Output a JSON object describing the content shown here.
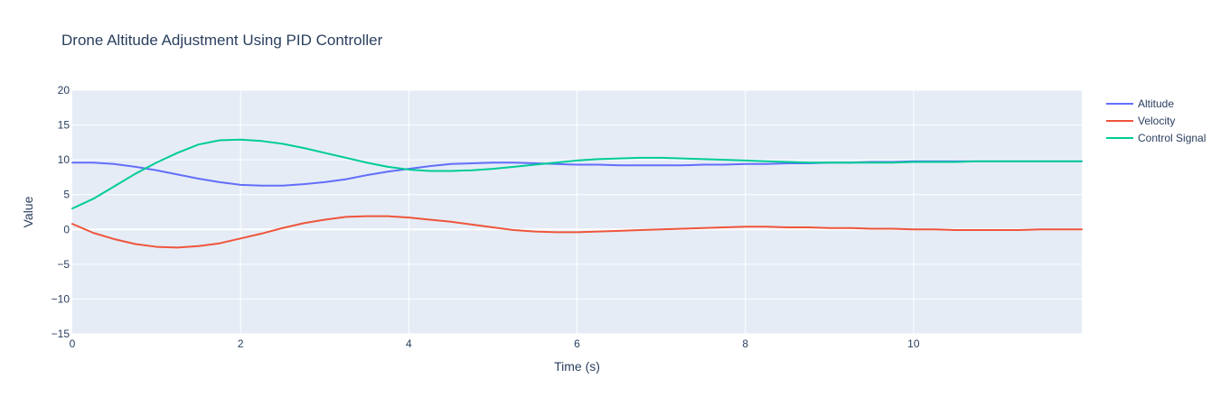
{
  "chart_data": {
    "type": "line",
    "title": "Drone Altitude Adjustment Using PID Controller",
    "xlabel": "Time (s)",
    "ylabel": "Value",
    "xlim": [
      0,
      12
    ],
    "ylim": [
      -15,
      20
    ],
    "x_ticks": [
      0,
      2,
      4,
      6,
      8,
      10
    ],
    "y_ticks": [
      -15,
      -10,
      -5,
      0,
      5,
      10,
      15,
      20
    ],
    "x_tick_labels": [
      "0",
      "2",
      "4",
      "6",
      "8",
      "10"
    ],
    "y_tick_labels": [
      "−15",
      "−10",
      "−5",
      "0",
      "5",
      "10",
      "15",
      "20"
    ],
    "grid": true,
    "legend_position": "top-right",
    "x": [
      0,
      0.25,
      0.5,
      0.75,
      1,
      1.25,
      1.5,
      1.75,
      2,
      2.25,
      2.5,
      2.75,
      3,
      3.25,
      3.5,
      3.75,
      4,
      4.25,
      4.5,
      4.75,
      5,
      5.25,
      5.5,
      5.75,
      6,
      6.25,
      6.5,
      6.75,
      7,
      7.25,
      7.5,
      7.75,
      8,
      8.25,
      8.5,
      8.75,
      9,
      9.25,
      9.5,
      9.75,
      10,
      10.25,
      10.5,
      10.75,
      11,
      11.25,
      11.5,
      11.75,
      12
    ],
    "series": [
      {
        "name": "Altitude",
        "color": "#636efa",
        "values": [
          9.6,
          9.6,
          9.4,
          9.0,
          8.5,
          7.9,
          7.3,
          6.8,
          6.4,
          6.3,
          6.3,
          6.5,
          6.8,
          7.2,
          7.8,
          8.3,
          8.7,
          9.1,
          9.4,
          9.5,
          9.6,
          9.6,
          9.5,
          9.4,
          9.3,
          9.3,
          9.2,
          9.2,
          9.2,
          9.2,
          9.3,
          9.3,
          9.4,
          9.4,
          9.5,
          9.5,
          9.6,
          9.6,
          9.7,
          9.7,
          9.8,
          9.8,
          9.8,
          9.8,
          9.8,
          9.8,
          9.8,
          9.8,
          9.8
        ]
      },
      {
        "name": "Velocity",
        "color": "#ef553b",
        "values": [
          0.8,
          -0.5,
          -1.4,
          -2.1,
          -2.5,
          -2.6,
          -2.4,
          -2.0,
          -1.3,
          -0.6,
          0.2,
          0.9,
          1.4,
          1.8,
          1.9,
          1.9,
          1.7,
          1.4,
          1.1,
          0.7,
          0.3,
          -0.1,
          -0.3,
          -0.4,
          -0.4,
          -0.3,
          -0.2,
          -0.1,
          0.0,
          0.1,
          0.2,
          0.3,
          0.4,
          0.4,
          0.3,
          0.3,
          0.2,
          0.2,
          0.1,
          0.1,
          0.0,
          0.0,
          -0.1,
          -0.1,
          -0.1,
          -0.1,
          0.0,
          0.0,
          0.0
        ]
      },
      {
        "name": "Control Signal",
        "color": "#00cc96",
        "values": [
          3.0,
          4.4,
          6.2,
          8.0,
          9.6,
          11.0,
          12.2,
          12.8,
          12.9,
          12.7,
          12.3,
          11.7,
          11.0,
          10.3,
          9.6,
          9.0,
          8.6,
          8.4,
          8.4,
          8.5,
          8.7,
          9.0,
          9.3,
          9.6,
          9.9,
          10.1,
          10.2,
          10.3,
          10.3,
          10.2,
          10.1,
          10.0,
          9.9,
          9.8,
          9.7,
          9.6,
          9.6,
          9.6,
          9.6,
          9.6,
          9.7,
          9.7,
          9.7,
          9.8,
          9.8,
          9.8,
          9.8,
          9.8,
          9.8
        ]
      }
    ]
  }
}
